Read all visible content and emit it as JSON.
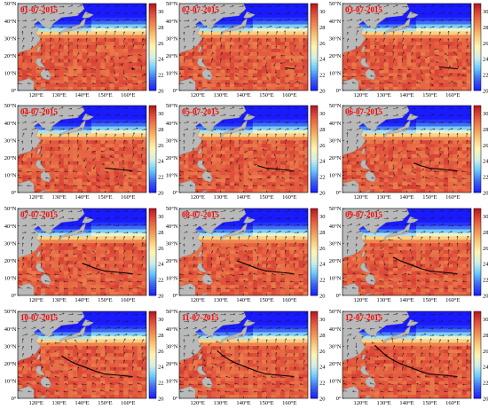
{
  "figure": {
    "panels": [
      {
        "date": "01-07-2015",
        "track_points": 1
      },
      {
        "date": "02-07-2015",
        "track_points": 2
      },
      {
        "date": "03-07-2015",
        "track_points": 3
      },
      {
        "date": "04-07-2015",
        "track_points": 4
      },
      {
        "date": "05-07-2015",
        "track_points": 5
      },
      {
        "date": "06-07-2015",
        "track_points": 6
      },
      {
        "date": "07-07-2015",
        "track_points": 7
      },
      {
        "date": "08-07-2015",
        "track_points": 8
      },
      {
        "date": "09-07-2015",
        "track_points": 9
      },
      {
        "date": "10-07-2015",
        "track_points": 10
      },
      {
        "date": "11-07-2015",
        "track_points": 11
      },
      {
        "date": "12-07-2015",
        "track_points": 12
      }
    ],
    "lon_ticks": [
      "120°E",
      "130°E",
      "140°E",
      "150°E",
      "160°E"
    ],
    "lat_ticks": [
      "0°",
      "10°N",
      "20°N",
      "30°N",
      "40°N",
      "50°N"
    ],
    "colorbar_ticks": [
      "20",
      "22",
      "24",
      "26",
      "28",
      "30"
    ],
    "colorbar_range": [
      20,
      31
    ],
    "colors": {
      "date_label": "#ff0000",
      "land": "#b9b9b9",
      "track": "#000000",
      "arrow": "#1a1a1a",
      "colormap": [
        "#1a1aff",
        "#3c64f0",
        "#66c8ff",
        "#d2f0e6",
        "#fff5b4",
        "#fac878",
        "#f08c50",
        "#e1503c",
        "#b4141e"
      ]
    },
    "typhoon_track_lonlat": [
      [
        162,
        12.5
      ],
      [
        158,
        13
      ],
      [
        154,
        13.5
      ],
      [
        150,
        14
      ],
      [
        146,
        15.5
      ],
      [
        143,
        17
      ],
      [
        140,
        18.5
      ],
      [
        137,
        20
      ],
      [
        134,
        22
      ],
      [
        131,
        24.5
      ],
      [
        128.5,
        27.5
      ],
      [
        126,
        30.5
      ]
    ]
  }
}
